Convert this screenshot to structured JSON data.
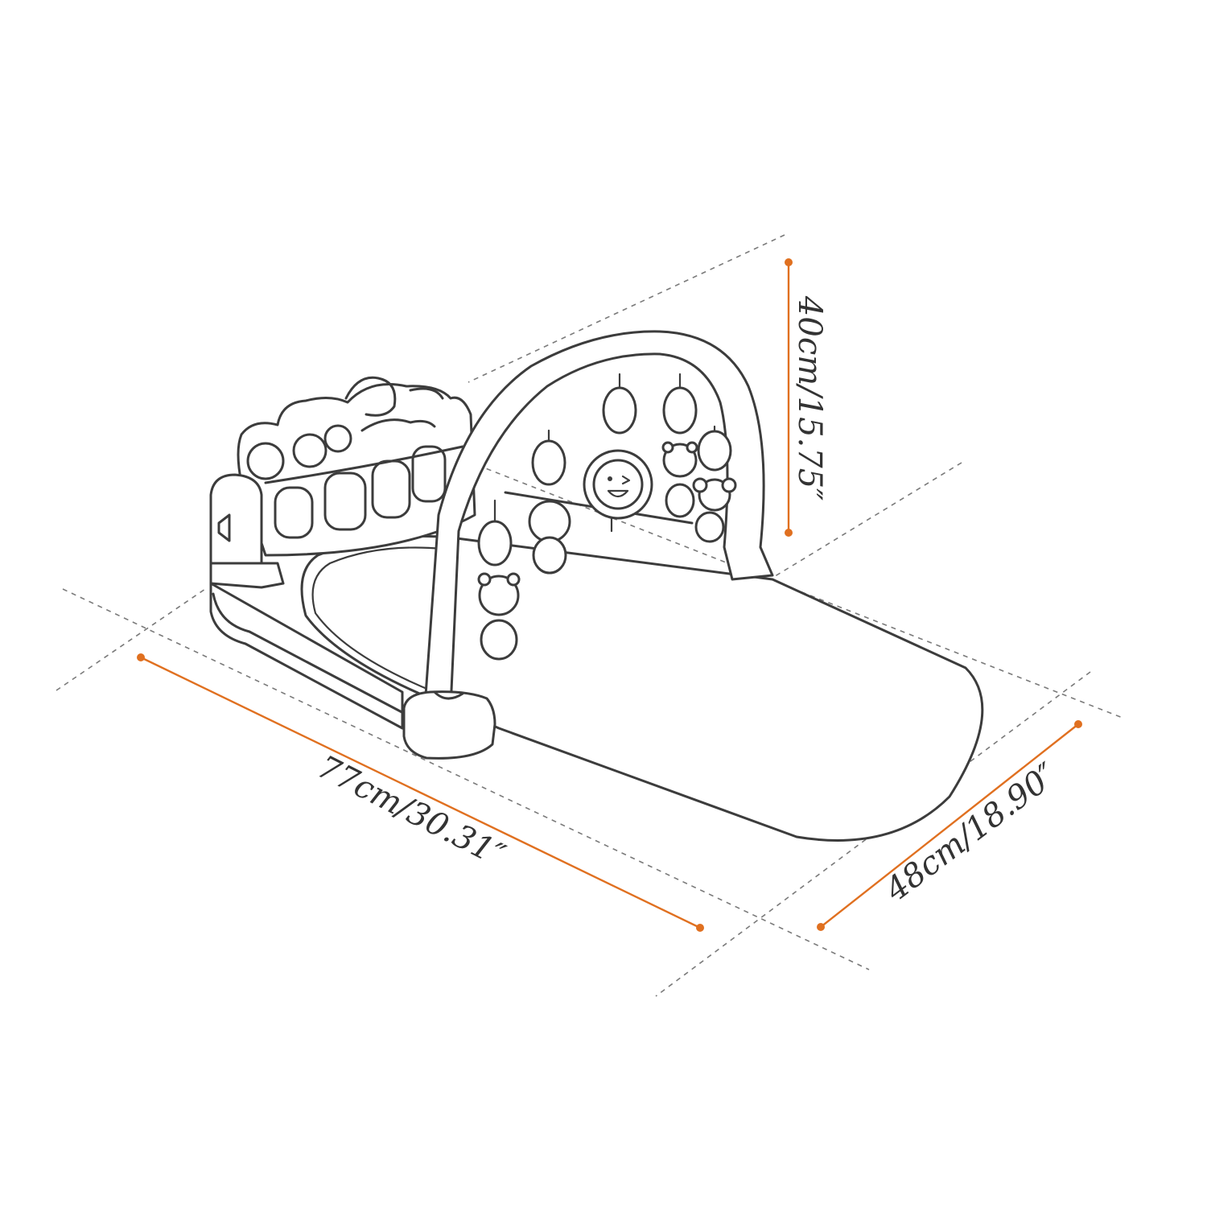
{
  "colors": {
    "background": "#ffffff",
    "outline": "#3c3c3c",
    "dimension_accent": "#e07020",
    "guide_lines": "#7a7a7a"
  },
  "product": {
    "name_hint": "baby play gym with piano panel and hanging toys"
  },
  "dimensions": {
    "length": {
      "label": "77cm/30.31″",
      "value_cm": 77,
      "value_in": 30.31
    },
    "width": {
      "label": "48cm/18.90″",
      "value_cm": 48,
      "value_in": 18.9
    },
    "height": {
      "label": "40cm/15.75″",
      "value_cm": 40,
      "value_in": 15.75
    }
  }
}
